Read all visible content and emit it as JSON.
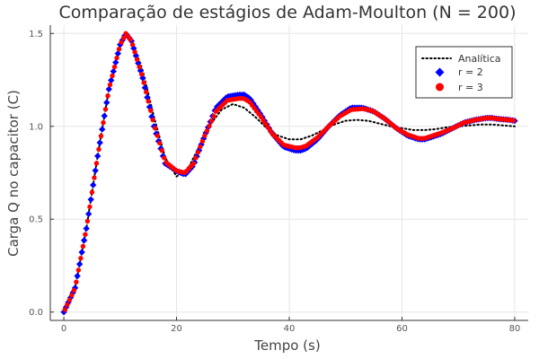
{
  "chart_data": {
    "type": "line",
    "title": "Comparação de estágios de Adam-Moulton (N = 200)",
    "xlabel": "Tempo (s)",
    "ylabel": "Carga Q no capacitor (C)",
    "xlim": [
      -2.4,
      82.4
    ],
    "ylim": [
      -0.045,
      1.545
    ],
    "x_ticks": [
      0,
      20,
      40,
      60,
      80
    ],
    "x_tick_labels": [
      "0",
      "20",
      "40",
      "60",
      "80"
    ],
    "y_ticks": [
      0.0,
      0.5,
      1.0,
      1.5
    ],
    "y_tick_labels": [
      "0.0",
      "0.5",
      "1.0",
      "1.5"
    ],
    "grid": true,
    "legend_position": "top-right",
    "series": [
      {
        "name": "Analítica",
        "style": "dotted-line",
        "color": "#000000",
        "x": [
          0,
          2,
          4,
          6,
          8,
          10,
          11,
          12,
          14,
          16,
          18,
          20,
          22,
          24,
          26,
          28,
          30,
          32,
          34,
          36,
          38,
          40,
          42,
          44,
          46,
          48,
          50,
          52,
          54,
          56,
          58,
          60,
          62,
          64,
          66,
          68,
          70,
          72,
          74,
          76,
          78,
          80
        ],
        "y": [
          0.0,
          0.13,
          0.45,
          0.84,
          1.2,
          1.44,
          1.49,
          1.47,
          1.3,
          1.05,
          0.83,
          0.73,
          0.77,
          0.89,
          1.01,
          1.09,
          1.12,
          1.1,
          1.05,
          0.99,
          0.95,
          0.93,
          0.93,
          0.95,
          0.98,
          1.01,
          1.03,
          1.035,
          1.03,
          1.015,
          1.0,
          0.99,
          0.98,
          0.98,
          0.985,
          0.995,
          1.0,
          1.005,
          1.01,
          1.01,
          1.005,
          1.0
        ]
      },
      {
        "name": "r = 2",
        "style": "diamond-markers",
        "color": "#0000ff",
        "x": [
          0,
          2,
          4,
          6,
          8,
          10,
          11,
          12,
          14,
          16,
          18,
          20,
          21.5,
          23,
          25,
          27,
          29,
          31,
          32,
          33,
          35,
          37,
          39,
          41,
          42,
          43,
          45,
          47,
          49,
          51,
          53,
          54,
          55,
          57,
          59,
          61,
          63,
          64,
          65,
          67,
          69,
          71,
          73,
          75,
          76,
          77,
          79,
          80
        ],
        "y": [
          0.0,
          0.13,
          0.45,
          0.84,
          1.2,
          1.44,
          1.5,
          1.46,
          1.26,
          1.0,
          0.8,
          0.76,
          0.74,
          0.79,
          0.95,
          1.1,
          1.16,
          1.17,
          1.17,
          1.15,
          1.06,
          0.96,
          0.89,
          0.87,
          0.87,
          0.88,
          0.93,
          1.0,
          1.06,
          1.1,
          1.1,
          1.09,
          1.08,
          1.04,
          0.99,
          0.95,
          0.93,
          0.93,
          0.94,
          0.96,
          0.99,
          1.02,
          1.035,
          1.045,
          1.045,
          1.04,
          1.035,
          1.03
        ]
      },
      {
        "name": "r = 3",
        "style": "circle-markers",
        "color": "#ff0000",
        "x": [
          0,
          2,
          4,
          6,
          8,
          10,
          11,
          12,
          14,
          16,
          18,
          20,
          21.5,
          23,
          25,
          27,
          29,
          31,
          32,
          33,
          35,
          37,
          39,
          41,
          42,
          43,
          45,
          47,
          49,
          51,
          53,
          54,
          55,
          57,
          59,
          61,
          63,
          64,
          65,
          67,
          69,
          71,
          73,
          75,
          76,
          77,
          79,
          80
        ],
        "y": [
          0.0,
          0.13,
          0.45,
          0.84,
          1.2,
          1.44,
          1.5,
          1.46,
          1.26,
          1.01,
          0.81,
          0.76,
          0.75,
          0.8,
          0.95,
          1.08,
          1.14,
          1.15,
          1.15,
          1.13,
          1.05,
          0.96,
          0.9,
          0.885,
          0.885,
          0.895,
          0.94,
          1.0,
          1.055,
          1.09,
          1.095,
          1.09,
          1.08,
          1.04,
          0.99,
          0.955,
          0.935,
          0.935,
          0.945,
          0.965,
          0.99,
          1.02,
          1.035,
          1.045,
          1.045,
          1.04,
          1.035,
          1.03
        ]
      }
    ]
  }
}
